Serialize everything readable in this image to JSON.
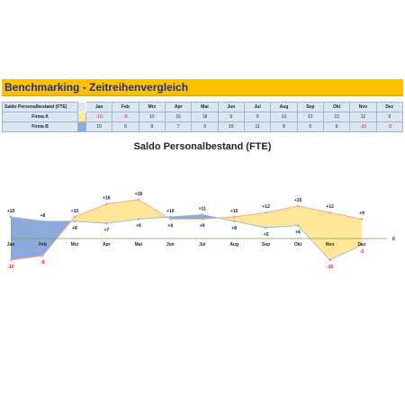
{
  "banner": {
    "title": "Benchmarking - Zeitreihenvergleich"
  },
  "table": {
    "corner": "Saldo Personalbestand (FTE)",
    "months": [
      "Jan",
      "Feb",
      "Mrz",
      "Apr",
      "Mai",
      "Jun",
      "Jul",
      "Aug",
      "Sep",
      "Okt",
      "Nov",
      "Dez"
    ],
    "rows": [
      {
        "label": "Firma A",
        "swatch": "#ffe699",
        "values": [
          "-10",
          "-8",
          "10",
          "16",
          "18",
          "9",
          "9",
          "10",
          "12",
          "15",
          "12",
          "9"
        ]
      },
      {
        "label": "Firma B",
        "swatch": "#8ea9db",
        "values": [
          "10",
          "8",
          "8",
          "7",
          "9",
          "10",
          "11",
          "8",
          "5",
          "6",
          "-10",
          "-3"
        ]
      }
    ]
  },
  "chart_data": {
    "type": "line",
    "title": "Saldo Personalbestand (FTE)",
    "categories": [
      "Jan",
      "Feb",
      "Mrz",
      "Apr",
      "Mai",
      "Jun",
      "Jul",
      "Aug",
      "Sep",
      "Okt",
      "Nov",
      "Dez"
    ],
    "series": [
      {
        "name": "Firma A",
        "values": [
          -10,
          -8,
          10,
          16,
          18,
          9,
          9,
          10,
          12,
          15,
          12,
          9
        ],
        "line_color": "#f4a582",
        "fill_color": "#ffe699"
      },
      {
        "name": "Firma B",
        "values": [
          10,
          8,
          8,
          7,
          9,
          10,
          11,
          8,
          5,
          6,
          -10,
          -3
        ],
        "line_color": "#8fb8d8",
        "fill_color": "#8ea9db"
      }
    ],
    "data_labels": {
      "Firma A": [
        "-10",
        "-8",
        "+10",
        "+16",
        "+18",
        "+9",
        "+9",
        "+10",
        "+12",
        "+15",
        "+12",
        "+9"
      ],
      "Firma B": [
        "+10",
        "+8",
        "+8",
        "+7",
        "+9",
        "+10",
        "+11",
        "+8",
        "+5",
        "+6",
        "-10",
        "-3"
      ]
    },
    "zero_label": "0",
    "zero_line_color": "#70ad47",
    "ylim": [
      -12,
      20
    ],
    "legend": "none",
    "grid": false
  }
}
